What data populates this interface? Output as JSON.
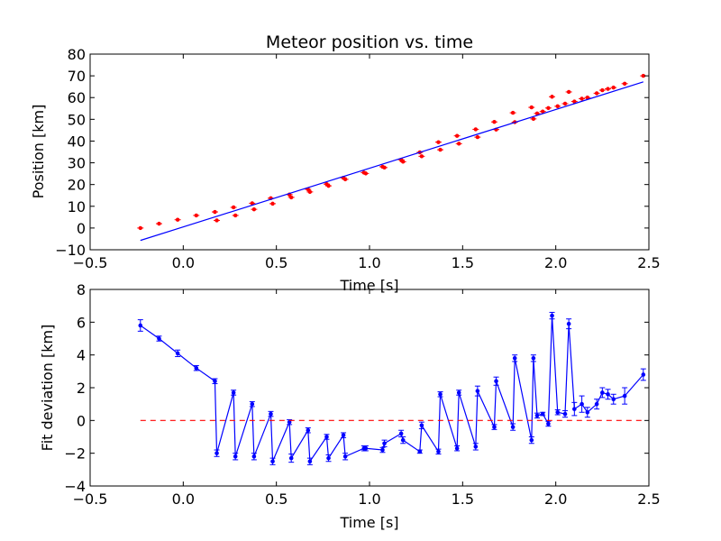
{
  "figure": {
    "background": "#ffffff"
  },
  "chart_data": [
    {
      "type": "scatter",
      "title": "Meteor position vs. time",
      "xlabel": "Time [s]",
      "ylabel": "Position [km]",
      "xlim": [
        -0.5,
        2.5
      ],
      "ylim": [
        -10,
        80
      ],
      "xticks": [
        -0.5,
        0.0,
        0.5,
        1.0,
        1.5,
        2.0,
        2.5
      ],
      "xtick_labels": [
        "−0.5",
        "0.0",
        "0.5",
        "1.0",
        "1.5",
        "2.0",
        "2.5"
      ],
      "yticks": [
        -10,
        0,
        10,
        20,
        30,
        40,
        50,
        60,
        70,
        80
      ],
      "ytick_labels": [
        "−10",
        "0",
        "10",
        "20",
        "30",
        "40",
        "50",
        "60",
        "70",
        "80"
      ],
      "grid": false,
      "legend": "none",
      "series": [
        {
          "kind": "points",
          "color": "#ff0000",
          "x": [
            -0.23,
            -0.13,
            -0.03,
            0.07,
            0.17,
            0.18,
            0.27,
            0.28,
            0.37,
            0.38,
            0.47,
            0.48,
            0.57,
            0.58,
            0.67,
            0.68,
            0.77,
            0.78,
            0.86,
            0.87,
            0.97,
            0.98,
            1.07,
            1.08,
            1.17,
            1.18,
            1.27,
            1.28,
            1.37,
            1.38,
            1.47,
            1.48,
            1.57,
            1.58,
            1.67,
            1.68,
            1.77,
            1.78,
            1.87,
            1.88,
            1.9,
            1.93,
            1.96,
            1.98,
            2.01,
            2.05,
            2.07,
            2.1,
            2.14,
            2.17,
            2.22,
            2.25,
            2.28,
            2.31,
            2.37,
            2.47
          ],
          "y": [
            0.0,
            2.0,
            3.8,
            5.8,
            7.4,
            3.5,
            9.5,
            5.8,
            11.4,
            8.6,
            13.7,
            11.2,
            15.4,
            14.1,
            17.8,
            16.6,
            20.2,
            19.4,
            23.1,
            22.4,
            25.5,
            25.1,
            28.2,
            27.8,
            31.4,
            30.5,
            34.8,
            33.0,
            39.5,
            36.0,
            42.4,
            38.8,
            45.4,
            41.8,
            48.8,
            45.3,
            53.0,
            48.7,
            55.5,
            50.2,
            52.7,
            53.6,
            55.2,
            60.4,
            56.0,
            57.2,
            62.6,
            58.2,
            59.5,
            60.0,
            62.0,
            63.4,
            64.0,
            64.6,
            66.4,
            70.0
          ]
        },
        {
          "kind": "line",
          "name": "",
          "color": "#0000ff",
          "x": [
            -0.23,
            2.47
          ],
          "y": [
            -5.7,
            67.2
          ]
        }
      ]
    },
    {
      "type": "line",
      "title": "",
      "xlabel": "Time [s]",
      "ylabel": "Fit deviation [km]",
      "xlim": [
        -0.5,
        2.5
      ],
      "ylim": [
        -4,
        8
      ],
      "xticks": [
        -0.5,
        0.0,
        0.5,
        1.0,
        1.5,
        2.0,
        2.5
      ],
      "xtick_labels": [
        "−0.5",
        "0.0",
        "0.5",
        "1.0",
        "1.5",
        "2.0",
        "2.5"
      ],
      "yticks": [
        -4,
        -2,
        0,
        2,
        4,
        6,
        8
      ],
      "ytick_labels": [
        "−4",
        "−2",
        "0",
        "2",
        "4",
        "6",
        "8"
      ],
      "grid": false,
      "legend": "none",
      "series": [
        {
          "kind": "errorbar-line",
          "color": "#0000ff",
          "x": [
            -0.23,
            -0.13,
            -0.03,
            0.07,
            0.17,
            0.18,
            0.27,
            0.28,
            0.37,
            0.38,
            0.47,
            0.48,
            0.57,
            0.58,
            0.67,
            0.68,
            0.77,
            0.78,
            0.86,
            0.87,
            0.97,
            0.98,
            1.07,
            1.08,
            1.17,
            1.18,
            1.27,
            1.28,
            1.37,
            1.38,
            1.47,
            1.48,
            1.57,
            1.58,
            1.67,
            1.68,
            1.77,
            1.78,
            1.87,
            1.88,
            1.9,
            1.93,
            1.96,
            1.98,
            2.01,
            2.05,
            2.07,
            2.1,
            2.14,
            2.17,
            2.22,
            2.25,
            2.28,
            2.31,
            2.37,
            2.47
          ],
          "y": [
            5.8,
            5.0,
            4.1,
            3.2,
            2.4,
            -2.0,
            1.7,
            -2.2,
            1.0,
            -2.2,
            0.4,
            -2.5,
            -0.1,
            -2.3,
            -0.6,
            -2.5,
            -1.0,
            -2.3,
            -0.9,
            -2.2,
            -1.7,
            -1.7,
            -1.8,
            -1.4,
            -0.8,
            -1.2,
            -1.9,
            -0.3,
            -1.9,
            1.6,
            -1.7,
            1.7,
            -1.6,
            1.8,
            -0.4,
            2.4,
            -0.4,
            3.8,
            -1.2,
            3.8,
            0.3,
            0.4,
            -0.2,
            6.4,
            0.5,
            0.4,
            5.9,
            0.7,
            1.0,
            0.5,
            1.0,
            1.7,
            1.6,
            1.3,
            1.5,
            2.8
          ],
          "yerr": [
            0.35,
            0.15,
            0.2,
            0.15,
            0.15,
            0.2,
            0.15,
            0.2,
            0.15,
            0.2,
            0.15,
            0.2,
            0.15,
            0.25,
            0.15,
            0.2,
            0.15,
            0.2,
            0.15,
            0.2,
            0.15,
            0.15,
            0.15,
            0.2,
            0.2,
            0.2,
            0.1,
            0.2,
            0.15,
            0.15,
            0.15,
            0.15,
            0.2,
            0.3,
            0.15,
            0.25,
            0.2,
            0.2,
            0.2,
            0.2,
            0.15,
            0.1,
            0.15,
            0.2,
            0.15,
            0.2,
            0.3,
            0.4,
            0.5,
            0.3,
            0.3,
            0.3,
            0.3,
            0.3,
            0.5,
            0.35
          ]
        },
        {
          "kind": "dashed-line",
          "name": "",
          "color": "#ff0000",
          "x": [
            -0.23,
            2.47
          ],
          "y": [
            0,
            0
          ]
        }
      ]
    }
  ]
}
